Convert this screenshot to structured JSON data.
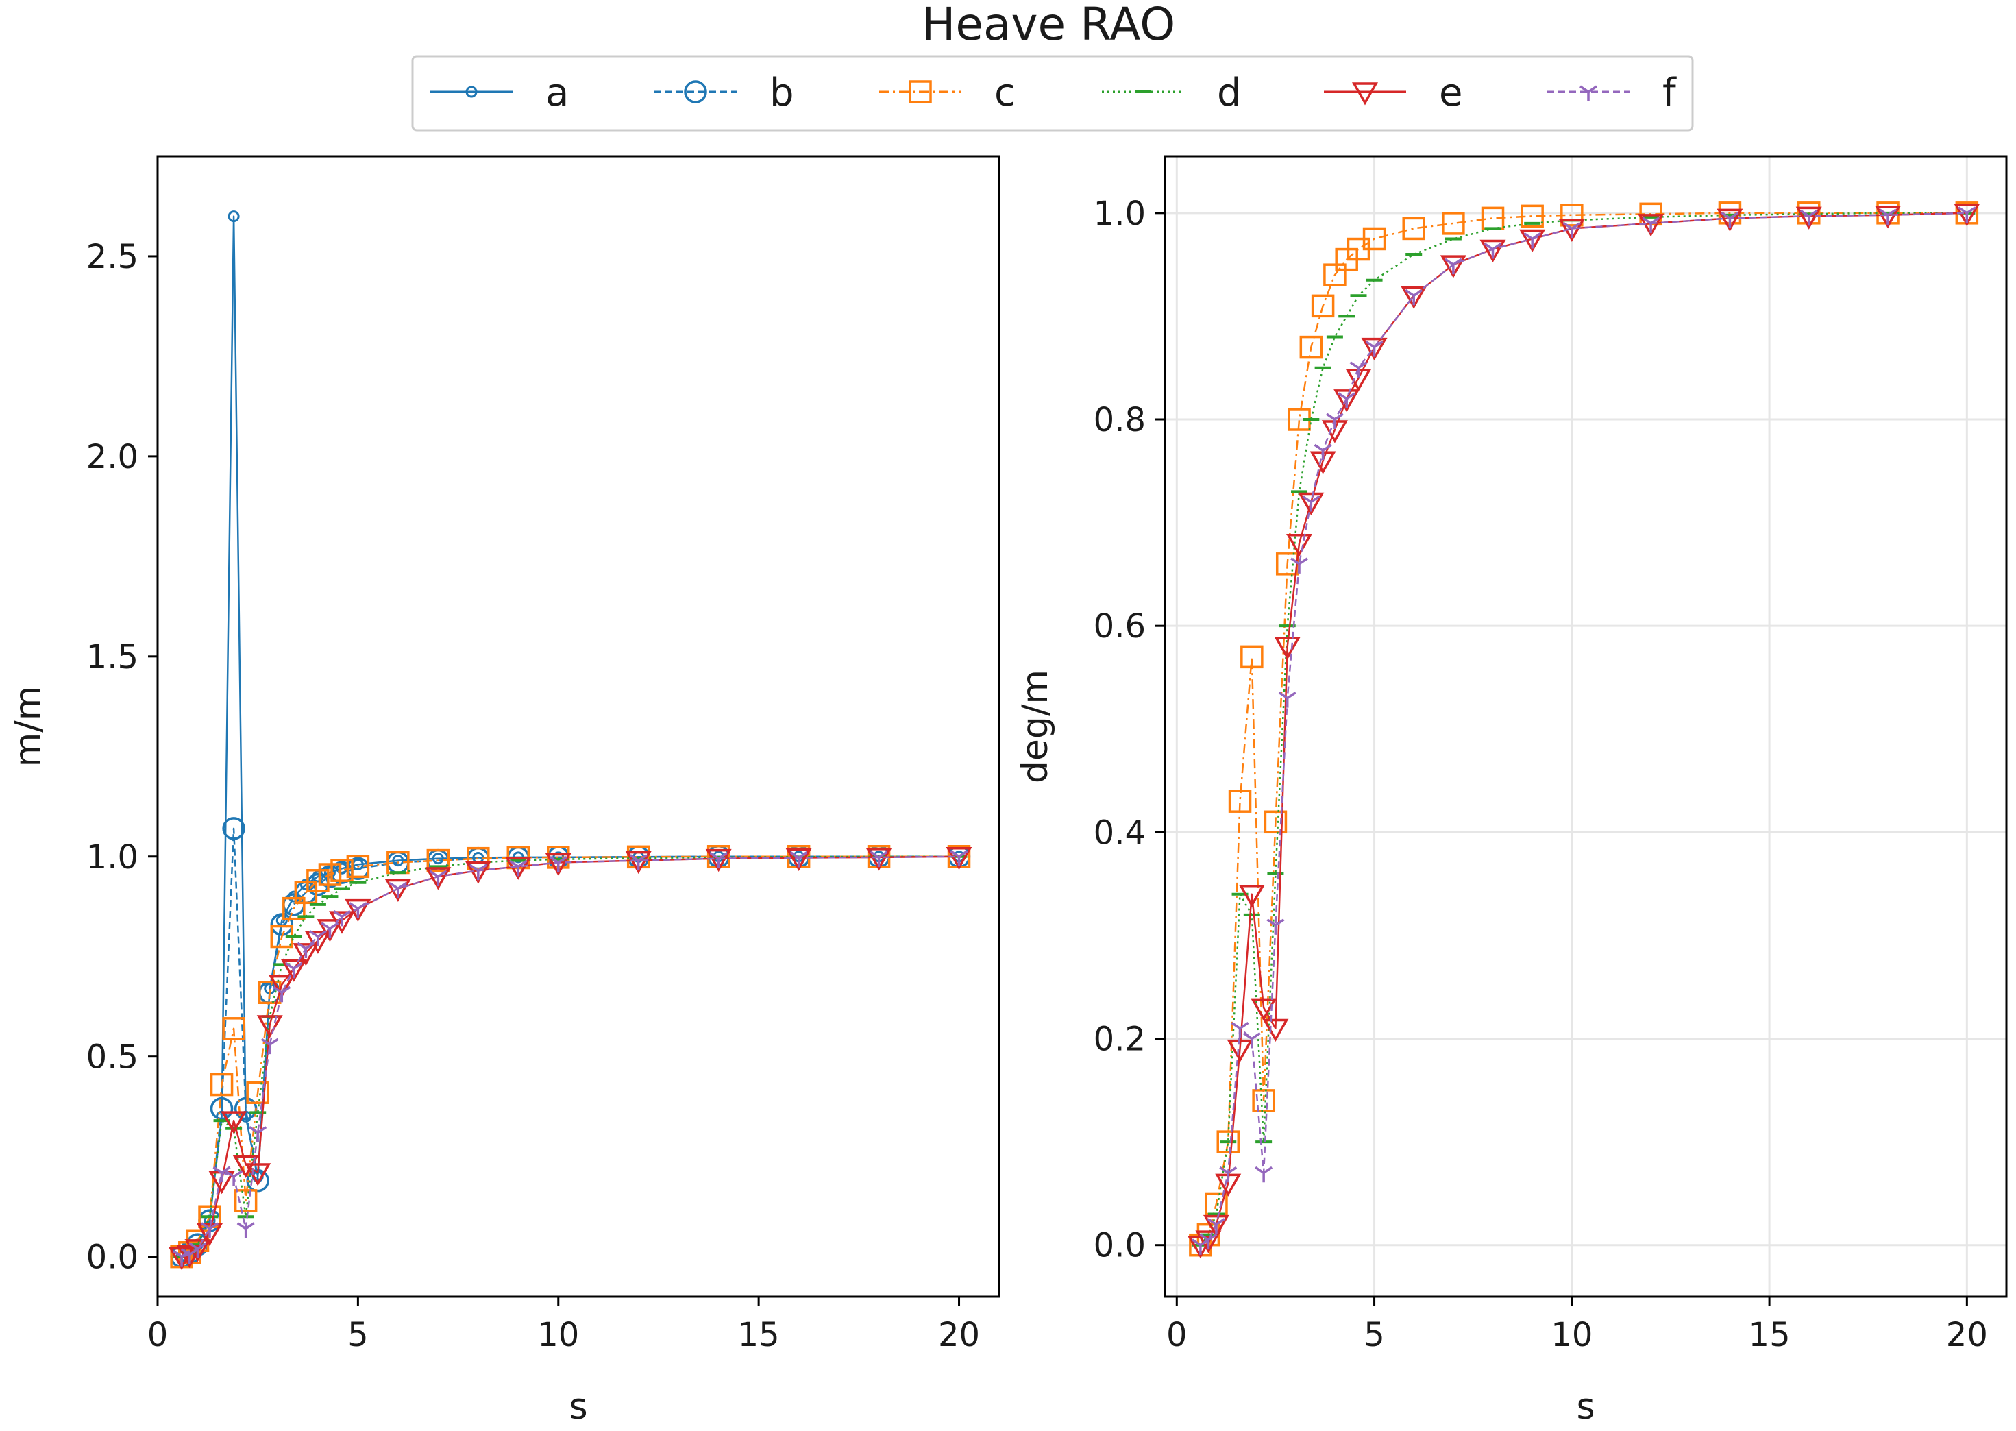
{
  "figure_title": "Heave RAO",
  "legend": [
    {
      "name": "a",
      "color": "#1f77b4",
      "marker": "small-circle",
      "line": "solid"
    },
    {
      "name": "b",
      "color": "#1f77b4",
      "marker": "circle",
      "line": "dashed"
    },
    {
      "name": "c",
      "color": "#ff7f0e",
      "marker": "square",
      "line": "dashdot"
    },
    {
      "name": "d",
      "color": "#2ca02c",
      "marker": "hline",
      "line": "dotted"
    },
    {
      "name": "e",
      "color": "#d62728",
      "marker": "triangle-down",
      "line": "solid"
    },
    {
      "name": "f",
      "color": "#9467bd",
      "marker": "tri-down",
      "line": "dashed"
    }
  ],
  "chart_data": [
    {
      "type": "line",
      "title": "",
      "xlabel": "s",
      "ylabel": "m/m",
      "xlim": [
        0,
        21
      ],
      "ylim": [
        -0.1,
        2.75
      ],
      "xticks": [
        0,
        5,
        10,
        15,
        20
      ],
      "yticks": [
        0.0,
        0.5,
        1.0,
        1.5,
        2.0,
        2.5
      ],
      "ytick_labels": [
        "0.0",
        "0.5",
        "1.0",
        "1.5",
        "2.0",
        "2.5"
      ],
      "grid": false,
      "series": [
        {
          "name": "a",
          "x": [
            0.6,
            0.8,
            1.0,
            1.3,
            1.6,
            1.9,
            2.2,
            2.5,
            2.8,
            3.1,
            3.4,
            3.7,
            4.0,
            4.3,
            4.6,
            5.0,
            6,
            7,
            8,
            9,
            10,
            12,
            14,
            16,
            18,
            20
          ],
          "values": [
            0.0,
            0.01,
            0.03,
            0.09,
            0.35,
            2.6,
            0.35,
            0.2,
            0.67,
            0.84,
            0.9,
            0.93,
            0.95,
            0.96,
            0.97,
            0.98,
            0.99,
            0.995,
            0.997,
            0.998,
            0.998,
            0.999,
            1.0,
            1.0,
            1.0,
            1.0
          ]
        },
        {
          "name": "b",
          "x": [
            0.6,
            0.8,
            1.0,
            1.3,
            1.6,
            1.9,
            2.2,
            2.5,
            2.8,
            3.1,
            3.4,
            3.7,
            4.0,
            4.3,
            4.6,
            5.0,
            6,
            7,
            8,
            9,
            10,
            12,
            14,
            16,
            18,
            20
          ],
          "values": [
            0.0,
            0.01,
            0.03,
            0.09,
            0.37,
            1.07,
            0.37,
            0.19,
            0.66,
            0.83,
            0.88,
            0.91,
            0.93,
            0.95,
            0.96,
            0.97,
            0.985,
            0.99,
            0.995,
            0.997,
            0.998,
            0.999,
            1.0,
            1.0,
            1.0,
            1.0
          ]
        },
        {
          "name": "c",
          "x": [
            0.6,
            0.8,
            1.0,
            1.3,
            1.6,
            1.9,
            2.2,
            2.5,
            2.8,
            3.1,
            3.4,
            3.7,
            4.0,
            4.3,
            4.6,
            5.0,
            6,
            7,
            8,
            9,
            10,
            12,
            14,
            16,
            18,
            20
          ],
          "values": [
            0.0,
            0.01,
            0.04,
            0.1,
            0.43,
            0.57,
            0.14,
            0.41,
            0.66,
            0.8,
            0.87,
            0.91,
            0.94,
            0.955,
            0.965,
            0.975,
            0.985,
            0.99,
            0.995,
            0.997,
            0.998,
            0.999,
            1.0,
            1.0,
            1.0,
            1.0
          ]
        },
        {
          "name": "d",
          "x": [
            0.6,
            0.8,
            1.0,
            1.3,
            1.6,
            1.9,
            2.2,
            2.5,
            2.8,
            3.1,
            3.4,
            3.7,
            4.0,
            4.3,
            4.6,
            5.0,
            6,
            7,
            8,
            9,
            10,
            12,
            14,
            16,
            18,
            20
          ],
          "values": [
            0.0,
            0.01,
            0.03,
            0.1,
            0.34,
            0.32,
            0.1,
            0.36,
            0.6,
            0.73,
            0.8,
            0.85,
            0.88,
            0.9,
            0.92,
            0.935,
            0.96,
            0.975,
            0.985,
            0.99,
            0.993,
            0.996,
            0.998,
            0.999,
            1.0,
            1.0
          ]
        },
        {
          "name": "e",
          "x": [
            0.6,
            0.8,
            1.0,
            1.3,
            1.6,
            1.9,
            2.2,
            2.5,
            2.8,
            3.1,
            3.4,
            3.7,
            4.0,
            4.3,
            4.6,
            5.0,
            6,
            7,
            8,
            9,
            10,
            12,
            14,
            16,
            18,
            20
          ],
          "values": [
            0.0,
            0.005,
            0.02,
            0.06,
            0.19,
            0.34,
            0.23,
            0.21,
            0.58,
            0.68,
            0.72,
            0.76,
            0.79,
            0.82,
            0.84,
            0.87,
            0.92,
            0.95,
            0.965,
            0.975,
            0.985,
            0.99,
            0.995,
            0.997,
            0.998,
            1.0
          ]
        },
        {
          "name": "f",
          "x": [
            0.6,
            0.8,
            1.0,
            1.3,
            1.6,
            1.9,
            2.2,
            2.5,
            2.8,
            3.1,
            3.4,
            3.7,
            4.0,
            4.3,
            4.6,
            5.0,
            6,
            7,
            8,
            9,
            10,
            12,
            14,
            16,
            18,
            20
          ],
          "values": [
            0.0,
            0.005,
            0.02,
            0.07,
            0.21,
            0.2,
            0.07,
            0.31,
            0.53,
            0.66,
            0.72,
            0.77,
            0.8,
            0.82,
            0.85,
            0.87,
            0.92,
            0.95,
            0.965,
            0.975,
            0.985,
            0.99,
            0.995,
            0.997,
            0.998,
            1.0
          ]
        }
      ]
    },
    {
      "type": "line",
      "title": "",
      "xlabel": "s",
      "ylabel": "deg/m",
      "xlim": [
        -0.3,
        21
      ],
      "ylim": [
        -0.05,
        1.055
      ],
      "xticks": [
        0,
        5,
        10,
        15,
        20
      ],
      "yticks": [
        0.0,
        0.2,
        0.4,
        0.6,
        0.8,
        1.0
      ],
      "ytick_labels": [
        "0.0",
        "0.2",
        "0.4",
        "0.6",
        "0.8",
        "1.0"
      ],
      "grid": true,
      "series": [
        {
          "name": "c",
          "x": [
            0.6,
            0.8,
            1.0,
            1.3,
            1.6,
            1.9,
            2.2,
            2.5,
            2.8,
            3.1,
            3.4,
            3.7,
            4.0,
            4.3,
            4.6,
            5.0,
            6,
            7,
            8,
            9,
            10,
            12,
            14,
            16,
            18,
            20
          ],
          "values": [
            0.0,
            0.01,
            0.04,
            0.1,
            0.43,
            0.57,
            0.14,
            0.41,
            0.66,
            0.8,
            0.87,
            0.91,
            0.94,
            0.955,
            0.965,
            0.975,
            0.985,
            0.99,
            0.995,
            0.997,
            0.998,
            0.999,
            1.0,
            1.0,
            1.0,
            1.0
          ]
        },
        {
          "name": "d",
          "x": [
            0.6,
            0.8,
            1.0,
            1.3,
            1.6,
            1.9,
            2.2,
            2.5,
            2.8,
            3.1,
            3.4,
            3.7,
            4.0,
            4.3,
            4.6,
            5.0,
            6,
            7,
            8,
            9,
            10,
            12,
            14,
            16,
            18,
            20
          ],
          "values": [
            0.0,
            0.01,
            0.03,
            0.1,
            0.34,
            0.32,
            0.1,
            0.36,
            0.6,
            0.73,
            0.8,
            0.85,
            0.88,
            0.9,
            0.92,
            0.935,
            0.96,
            0.975,
            0.985,
            0.99,
            0.993,
            0.996,
            0.998,
            0.999,
            1.0,
            1.0
          ]
        },
        {
          "name": "e",
          "x": [
            0.6,
            0.8,
            1.0,
            1.3,
            1.6,
            1.9,
            2.2,
            2.5,
            2.8,
            3.1,
            3.4,
            3.7,
            4.0,
            4.3,
            4.6,
            5.0,
            6,
            7,
            8,
            9,
            10,
            12,
            14,
            16,
            18,
            20
          ],
          "values": [
            0.0,
            0.005,
            0.02,
            0.06,
            0.19,
            0.34,
            0.23,
            0.21,
            0.58,
            0.68,
            0.72,
            0.76,
            0.79,
            0.82,
            0.84,
            0.87,
            0.92,
            0.95,
            0.965,
            0.975,
            0.985,
            0.99,
            0.995,
            0.997,
            0.998,
            1.0
          ]
        },
        {
          "name": "f",
          "x": [
            0.6,
            0.8,
            1.0,
            1.3,
            1.6,
            1.9,
            2.2,
            2.5,
            2.8,
            3.1,
            3.4,
            3.7,
            4.0,
            4.3,
            4.6,
            5.0,
            6,
            7,
            8,
            9,
            10,
            12,
            14,
            16,
            18,
            20
          ],
          "values": [
            0.0,
            0.005,
            0.02,
            0.07,
            0.21,
            0.2,
            0.07,
            0.31,
            0.53,
            0.66,
            0.72,
            0.77,
            0.8,
            0.82,
            0.85,
            0.87,
            0.92,
            0.95,
            0.965,
            0.975,
            0.985,
            0.99,
            0.995,
            0.997,
            0.998,
            1.0
          ]
        }
      ]
    }
  ]
}
